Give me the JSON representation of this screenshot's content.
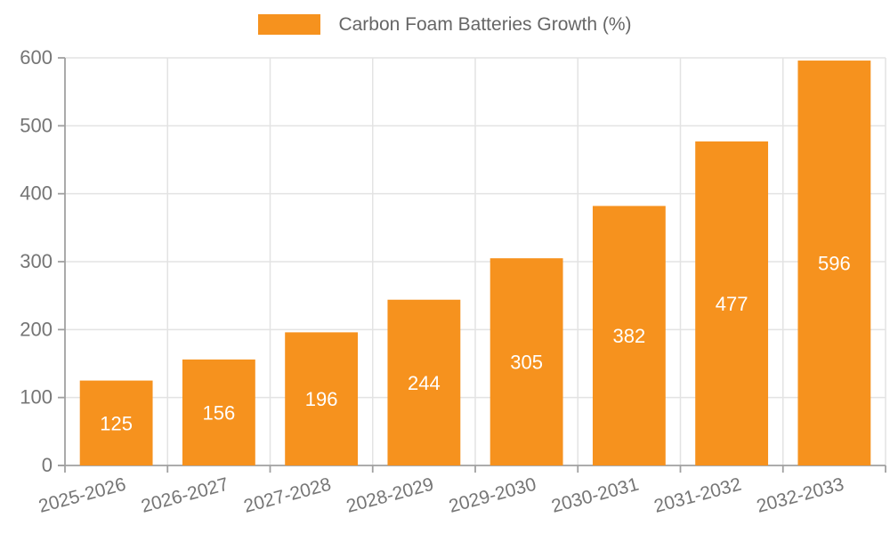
{
  "legend": {
    "label": "Carbon Foam Batteries Growth (%)"
  },
  "colors": {
    "bar": "#f6921e",
    "bar_label": "#ffffff",
    "grid": "#e3e3e3",
    "axis": "#a0a0a0",
    "tick_text": "#757575",
    "legend_text": "#666666",
    "background": "#ffffff"
  },
  "chart_data": {
    "type": "bar",
    "title": "Carbon Foam Batteries Growth (%)",
    "categories": [
      "2025-2026",
      "2026-2027",
      "2027-2028",
      "2028-2029",
      "2029-2030",
      "2030-2031",
      "2031-2032",
      "2032-2033"
    ],
    "values": [
      125,
      156,
      196,
      244,
      305,
      382,
      477,
      596
    ],
    "xlabel": "",
    "ylabel": "",
    "ylim": [
      0,
      600
    ],
    "yticks": [
      0,
      100,
      200,
      300,
      400,
      500,
      600
    ],
    "grid": true,
    "legend_position": "top-center",
    "bar_labels": "inside-center",
    "x_label_rotation_deg": -15
  }
}
